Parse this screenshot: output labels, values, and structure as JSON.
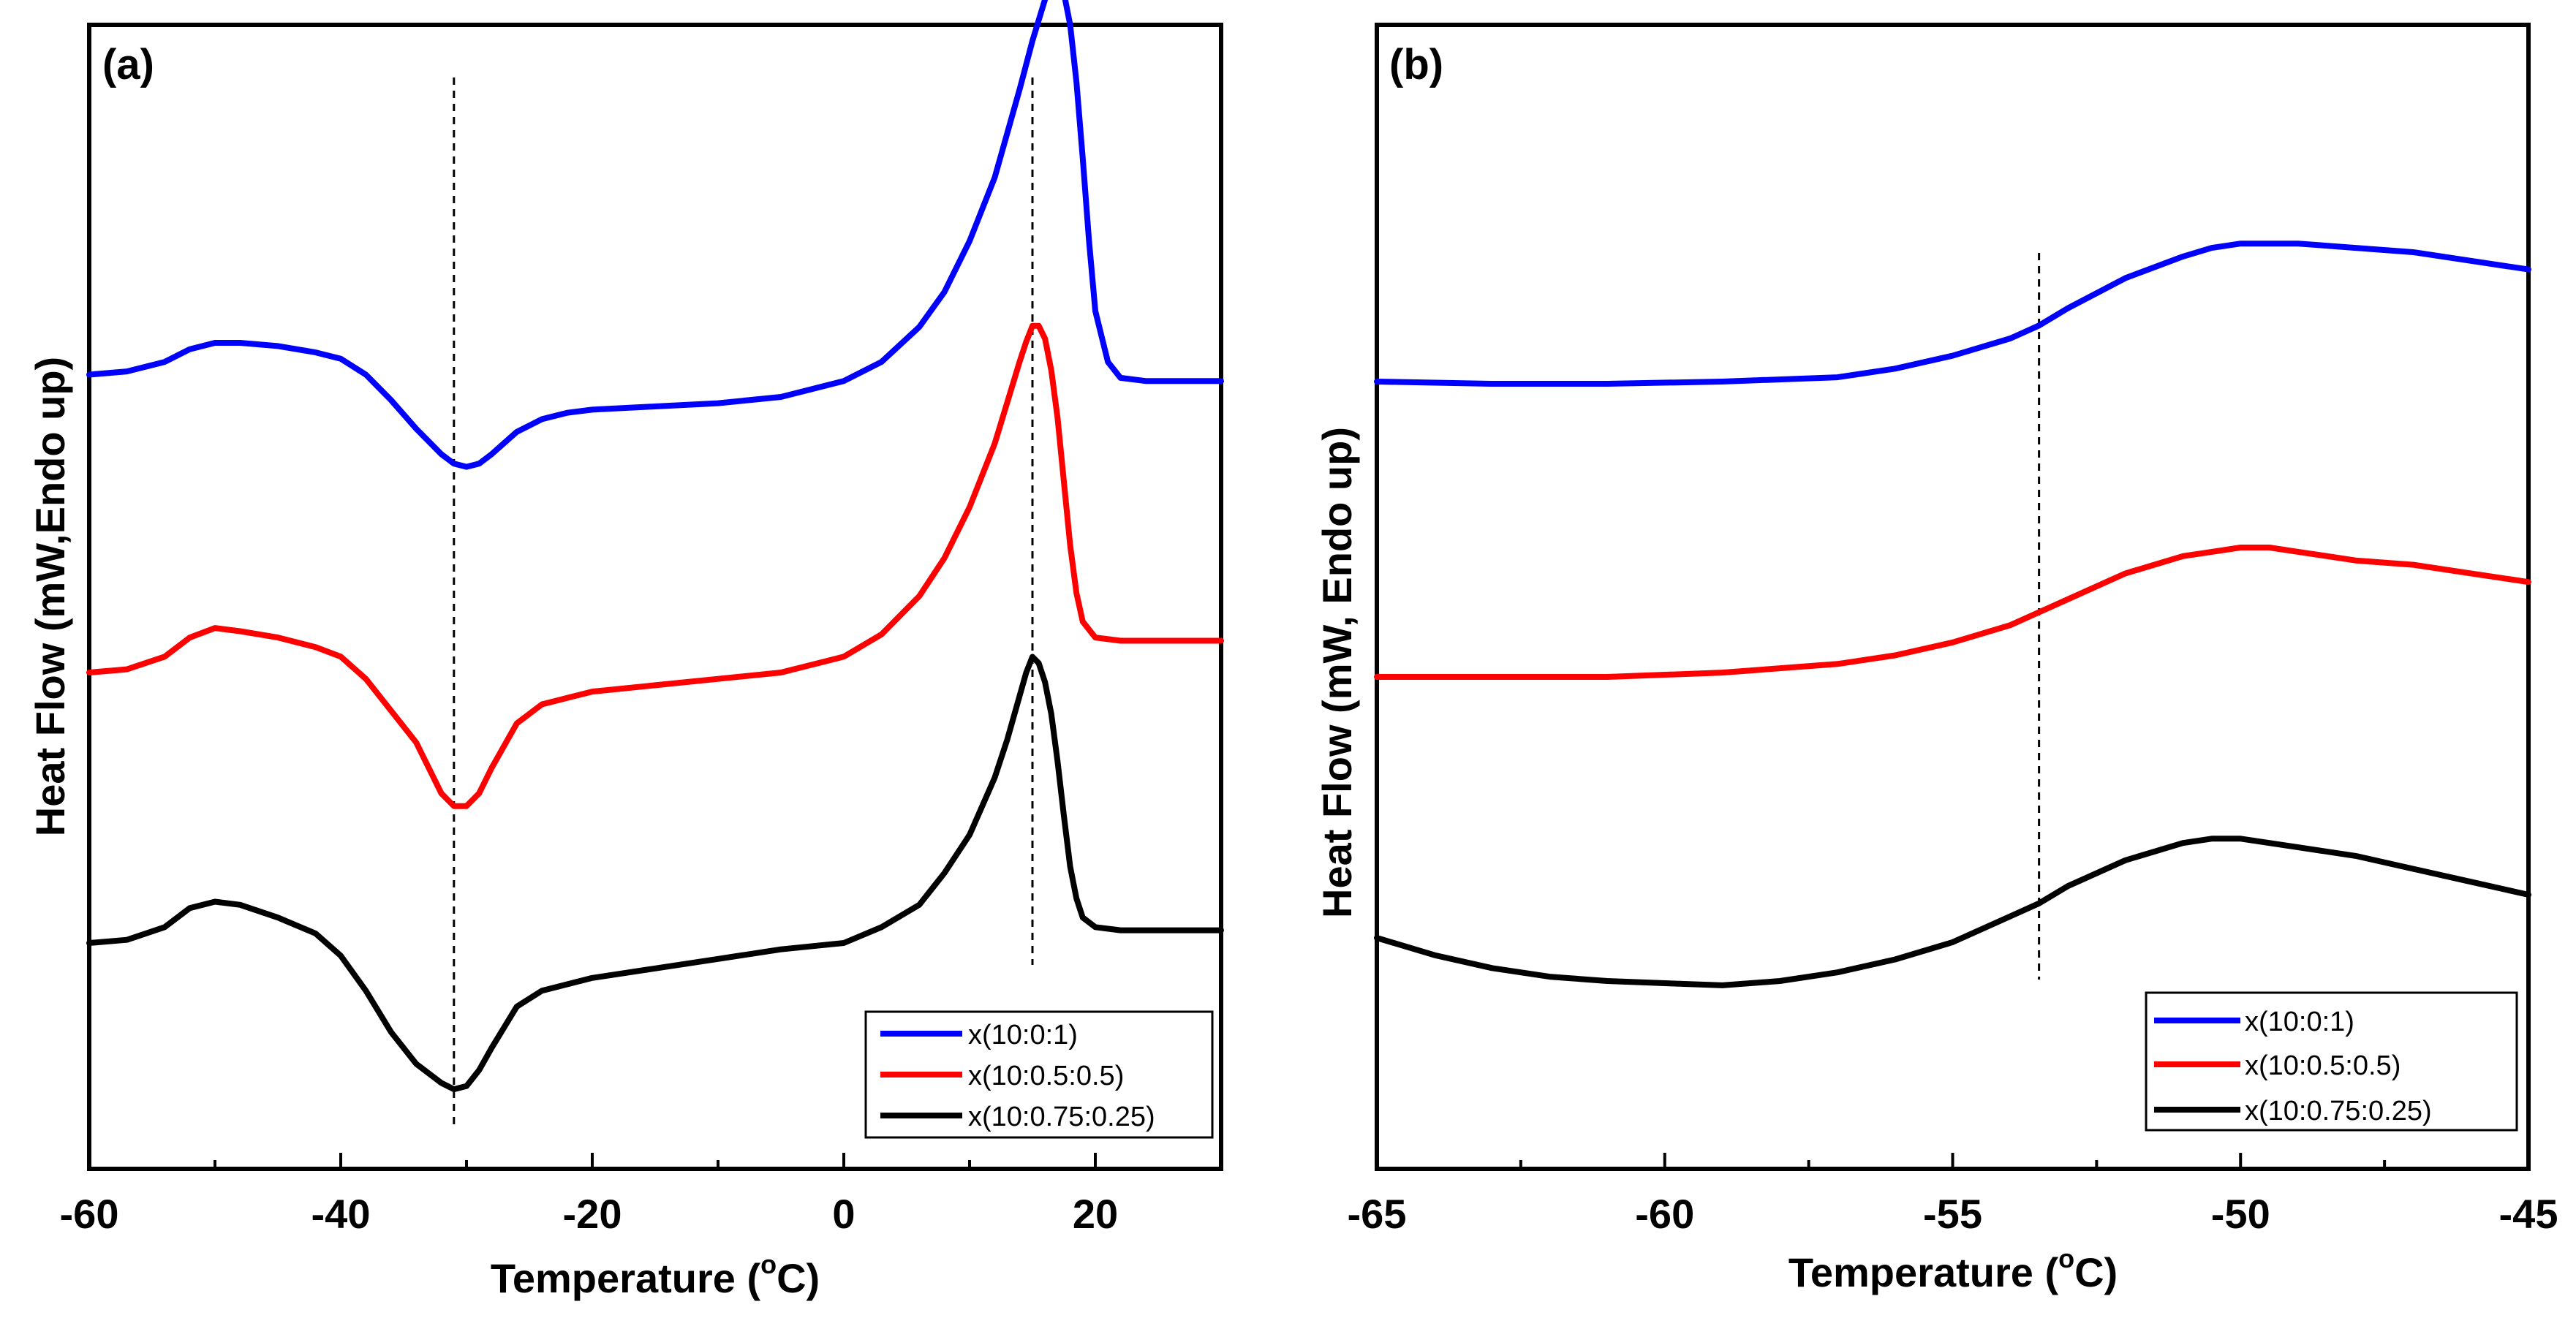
{
  "chart_data": [
    {
      "type": "line",
      "panel_label": "(a)",
      "xlabel": "Temperature (",
      "xlabel_sup": "o",
      "xlabel_unit": "C)",
      "ylabel": "Heat Flow (mW,Endo up)",
      "xlim": [
        -60,
        30
      ],
      "x_ticks": [
        -60,
        -40,
        -20,
        0,
        20
      ],
      "x_ticklabels": [
        "-60",
        "-40",
        "-20",
        "0",
        "20"
      ],
      "yticks_shown": false,
      "reference_lines_x": [
        -31,
        15
      ],
      "legend_position": "bottom-right",
      "series": [
        {
          "name": "x(10:0:1)",
          "color": "#0000ff",
          "x": [
            -60,
            -57,
            -54,
            -52,
            -50,
            -48,
            -45,
            -42,
            -40,
            -38,
            -36,
            -34,
            -32,
            -31,
            -30,
            -29,
            -28,
            -26,
            -24,
            -22,
            -20,
            -15,
            -10,
            -5,
            0,
            3,
            6,
            8,
            10,
            12,
            13,
            14,
            15,
            16,
            16.5,
            17,
            17.5,
            18,
            18.5,
            19,
            19.5,
            20,
            21,
            22,
            24,
            27,
            30
          ],
          "y": [
            0.1,
            0.11,
            0.14,
            0.18,
            0.2,
            0.2,
            0.19,
            0.17,
            0.15,
            0.1,
            0.02,
            -0.07,
            -0.15,
            -0.18,
            -0.19,
            -0.18,
            -0.15,
            -0.08,
            -0.04,
            -0.02,
            -0.01,
            0.0,
            0.01,
            0.03,
            0.08,
            0.14,
            0.25,
            0.36,
            0.52,
            0.72,
            0.86,
            1.0,
            1.15,
            1.28,
            1.33,
            1.33,
            1.3,
            1.2,
            1.02,
            0.78,
            0.52,
            0.3,
            0.14,
            0.09,
            0.08,
            0.08,
            0.08
          ]
        },
        {
          "name": "x(10:0.5:0.5)",
          "color": "#ff0000",
          "x": [
            -60,
            -57,
            -54,
            -52,
            -50,
            -48,
            -45,
            -42,
            -40,
            -38,
            -36,
            -34,
            -33,
            -32,
            -31,
            -30,
            -29,
            -28,
            -26,
            -24,
            -22,
            -20,
            -15,
            -10,
            -5,
            0,
            3,
            6,
            8,
            10,
            12,
            13,
            14,
            14.5,
            15,
            15.5,
            16,
            16.5,
            17,
            17.5,
            18,
            18.5,
            19,
            20,
            22,
            25,
            30
          ],
          "y": [
            0.0,
            0.01,
            0.05,
            0.11,
            0.14,
            0.13,
            0.11,
            0.08,
            0.05,
            -0.02,
            -0.12,
            -0.22,
            -0.3,
            -0.38,
            -0.42,
            -0.42,
            -0.38,
            -0.3,
            -0.16,
            -0.1,
            -0.08,
            -0.06,
            -0.04,
            -0.02,
            0.0,
            0.05,
            0.12,
            0.24,
            0.36,
            0.52,
            0.72,
            0.85,
            0.98,
            1.04,
            1.09,
            1.09,
            1.05,
            0.95,
            0.8,
            0.6,
            0.4,
            0.25,
            0.16,
            0.11,
            0.1,
            0.1,
            0.1
          ]
        },
        {
          "name": "x(10:0.75:0.25)",
          "color": "#000000",
          "x": [
            -60,
            -57,
            -54,
            -52,
            -50,
            -48,
            -45,
            -42,
            -40,
            -38,
            -36,
            -34,
            -32,
            -31,
            -30,
            -29,
            -28,
            -26,
            -24,
            -22,
            -20,
            -15,
            -10,
            -5,
            0,
            3,
            6,
            8,
            10,
            12,
            13,
            14,
            14.5,
            15,
            15.5,
            16,
            16.5,
            17,
            17.5,
            18,
            18.5,
            19,
            20,
            22,
            25,
            30
          ],
          "y": [
            0.0,
            0.01,
            0.05,
            0.11,
            0.13,
            0.12,
            0.08,
            0.03,
            -0.04,
            -0.15,
            -0.28,
            -0.38,
            -0.44,
            -0.46,
            -0.45,
            -0.4,
            -0.33,
            -0.2,
            -0.15,
            -0.13,
            -0.11,
            -0.08,
            -0.05,
            -0.02,
            0.0,
            0.05,
            0.12,
            0.22,
            0.34,
            0.52,
            0.64,
            0.78,
            0.85,
            0.9,
            0.88,
            0.82,
            0.72,
            0.57,
            0.4,
            0.24,
            0.14,
            0.08,
            0.05,
            0.04,
            0.04,
            0.04
          ]
        }
      ],
      "legend": [
        "x(10:0:1)",
        "x(10:0.5:0.5)",
        "x(10:0.75:0.25)"
      ]
    },
    {
      "type": "line",
      "panel_label": "(b)",
      "xlabel": "Temperature (",
      "xlabel_sup": "o",
      "xlabel_unit": "C)",
      "ylabel": "Heat Flow (mW, Endo up)",
      "xlim": [
        -65,
        -45
      ],
      "x_ticks": [
        -65,
        -60,
        -55,
        -50,
        -45
      ],
      "x_ticklabels": [
        "-65",
        "-60",
        "-55",
        "-50",
        "-45"
      ],
      "yticks_shown": false,
      "reference_lines_x": [
        -53.5
      ],
      "legend_position": "bottom-right",
      "series": [
        {
          "name": "x(10:0:1)",
          "color": "#0000ff",
          "x": [
            -65,
            -63,
            -61,
            -59,
            -57,
            -56,
            -55,
            -54,
            -53.5,
            -53,
            -52,
            -51,
            -50.5,
            -50,
            -49.5,
            -49,
            -48,
            -47,
            -46,
            -45
          ],
          "y": [
            0.0,
            -0.005,
            -0.005,
            0.0,
            0.01,
            0.03,
            0.06,
            0.1,
            0.13,
            0.17,
            0.24,
            0.29,
            0.31,
            0.32,
            0.32,
            0.32,
            0.31,
            0.3,
            0.28,
            0.26
          ]
        },
        {
          "name": "x(10:0.5:0.5)",
          "color": "#ff0000",
          "x": [
            -65,
            -63,
            -61,
            -59,
            -57,
            -56,
            -55,
            -54,
            -53.5,
            -53,
            -52,
            -51,
            -50.5,
            -50,
            -49.5,
            -49,
            -48,
            -47,
            -46,
            -45
          ],
          "y": [
            0.0,
            0.0,
            0.0,
            0.01,
            0.03,
            0.05,
            0.08,
            0.12,
            0.15,
            0.18,
            0.24,
            0.28,
            0.29,
            0.3,
            0.3,
            0.29,
            0.27,
            0.26,
            0.24,
            0.22
          ]
        },
        {
          "name": "x(10:0.75:0.25)",
          "color": "#000000",
          "x": [
            -65,
            -64,
            -63,
            -62,
            -61,
            -60,
            -59,
            -58,
            -57,
            -56,
            -55,
            -54,
            -53.5,
            -53,
            -52,
            -51,
            -50.5,
            -50,
            -49.5,
            -49,
            -48,
            -47,
            -46,
            -45
          ],
          "y": [
            0.0,
            -0.04,
            -0.07,
            -0.09,
            -0.1,
            -0.105,
            -0.11,
            -0.1,
            -0.08,
            -0.05,
            -0.01,
            0.05,
            0.08,
            0.12,
            0.18,
            0.22,
            0.23,
            0.23,
            0.22,
            0.21,
            0.19,
            0.16,
            0.13,
            0.1
          ]
        }
      ],
      "legend": [
        "x(10:0:1)",
        "x(10:0.5:0.5)",
        "x(10:0.75:0.25)"
      ]
    }
  ]
}
